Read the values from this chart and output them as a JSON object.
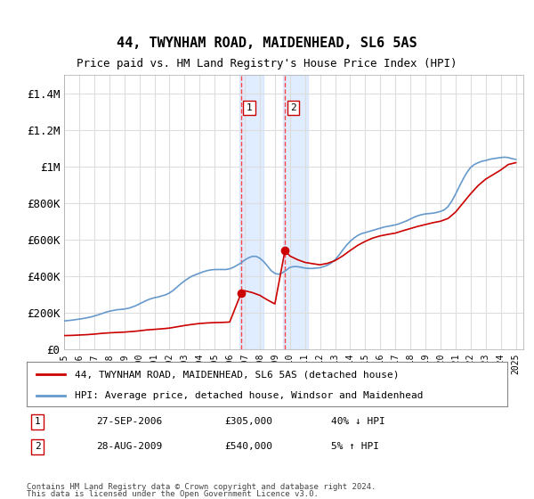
{
  "title": "44, TWYNHAM ROAD, MAIDENHEAD, SL6 5AS",
  "subtitle": "Price paid vs. HM Land Registry's House Price Index (HPI)",
  "ylabel": "",
  "ylim": [
    0,
    1500000
  ],
  "yticks": [
    0,
    200000,
    400000,
    600000,
    800000,
    1000000,
    1200000,
    1400000
  ],
  "ytick_labels": [
    "£0",
    "£200K",
    "£400K",
    "£600K",
    "£800K",
    "£1M",
    "£1.2M",
    "£1.4M"
  ],
  "xlim_start": 1995.0,
  "xlim_end": 2025.5,
  "sale1_x": 2006.75,
  "sale1_y": 305000,
  "sale1_label": "1",
  "sale1_date": "27-SEP-2006",
  "sale1_price": "£305,000",
  "sale1_hpi": "40% ↓ HPI",
  "sale2_x": 2009.67,
  "sale2_y": 540000,
  "sale2_label": "2",
  "sale2_date": "28-AUG-2009",
  "sale2_price": "£540,000",
  "sale2_hpi": "5% ↑ HPI",
  "shade_color": "#cce0ff",
  "shade_alpha": 0.5,
  "line1_color": "#cc0000",
  "line2_color": "#6699cc",
  "marker_color": "#cc0000",
  "grid_color": "#dddddd",
  "bg_color": "#ffffff",
  "legend_label1": "44, TWYNHAM ROAD, MAIDENHEAD, SL6 5AS (detached house)",
  "legend_label2": "HPI: Average price, detached house, Windsor and Maidenhead",
  "footer1": "Contains HM Land Registry data © Crown copyright and database right 2024.",
  "footer2": "This data is licensed under the Open Government Licence v3.0.",
  "hpi_years": [
    1995,
    1995.25,
    1995.5,
    1995.75,
    1996,
    1996.25,
    1996.5,
    1996.75,
    1997,
    1997.25,
    1997.5,
    1997.75,
    1998,
    1998.25,
    1998.5,
    1998.75,
    1999,
    1999.25,
    1999.5,
    1999.75,
    2000,
    2000.25,
    2000.5,
    2000.75,
    2001,
    2001.25,
    2001.5,
    2001.75,
    2002,
    2002.25,
    2002.5,
    2002.75,
    2003,
    2003.25,
    2003.5,
    2003.75,
    2004,
    2004.25,
    2004.5,
    2004.75,
    2005,
    2005.25,
    2005.5,
    2005.75,
    2006,
    2006.25,
    2006.5,
    2006.75,
    2007,
    2007.25,
    2007.5,
    2007.75,
    2008,
    2008.25,
    2008.5,
    2008.75,
    2009,
    2009.25,
    2009.5,
    2009.75,
    2010,
    2010.25,
    2010.5,
    2010.75,
    2011,
    2011.25,
    2011.5,
    2011.75,
    2012,
    2012.25,
    2012.5,
    2012.75,
    2013,
    2013.25,
    2013.5,
    2013.75,
    2014,
    2014.25,
    2014.5,
    2014.75,
    2015,
    2015.25,
    2015.5,
    2015.75,
    2016,
    2016.25,
    2016.5,
    2016.75,
    2017,
    2017.25,
    2017.5,
    2017.75,
    2018,
    2018.25,
    2018.5,
    2018.75,
    2019,
    2019.25,
    2019.5,
    2019.75,
    2020,
    2020.25,
    2020.5,
    2020.75,
    2021,
    2021.25,
    2021.5,
    2021.75,
    2022,
    2022.25,
    2022.5,
    2022.75,
    2023,
    2023.25,
    2023.5,
    2023.75,
    2024,
    2024.25,
    2024.5,
    2024.75,
    2025
  ],
  "hpi_values": [
    155000,
    157000,
    159000,
    162000,
    165000,
    168000,
    172000,
    176000,
    182000,
    188000,
    195000,
    202000,
    208000,
    212000,
    216000,
    218000,
    220000,
    224000,
    230000,
    238000,
    248000,
    258000,
    268000,
    276000,
    282000,
    286000,
    292000,
    298000,
    308000,
    322000,
    340000,
    358000,
    374000,
    388000,
    400000,
    408000,
    416000,
    424000,
    430000,
    434000,
    436000,
    436000,
    436000,
    436000,
    440000,
    448000,
    460000,
    472000,
    488000,
    500000,
    508000,
    508000,
    498000,
    480000,
    456000,
    430000,
    415000,
    410000,
    418000,
    432000,
    448000,
    452000,
    452000,
    448000,
    444000,
    442000,
    442000,
    444000,
    446000,
    452000,
    460000,
    472000,
    490000,
    514000,
    542000,
    568000,
    590000,
    608000,
    622000,
    632000,
    638000,
    644000,
    650000,
    656000,
    662000,
    668000,
    672000,
    676000,
    680000,
    686000,
    694000,
    702000,
    712000,
    722000,
    730000,
    736000,
    740000,
    742000,
    744000,
    748000,
    754000,
    762000,
    780000,
    810000,
    848000,
    890000,
    930000,
    966000,
    994000,
    1010000,
    1020000,
    1028000,
    1032000,
    1038000,
    1042000,
    1045000,
    1048000,
    1050000,
    1048000,
    1042000,
    1038000
  ],
  "red_years": [
    1995,
    1995.5,
    1996,
    1996.5,
    1997,
    1997.5,
    1998,
    1998.5,
    1999,
    1999.5,
    2000,
    2000.5,
    2001,
    2001.5,
    2002,
    2002.5,
    2003,
    2003.5,
    2004,
    2004.5,
    2005,
    2005.5,
    2006,
    2006.75,
    2007,
    2007.5,
    2008,
    2008.5,
    2009,
    2009.67,
    2010,
    2010.5,
    2011,
    2011.5,
    2012,
    2012.5,
    2013,
    2013.5,
    2014,
    2014.5,
    2015,
    2015.5,
    2016,
    2016.5,
    2017,
    2017.5,
    2018,
    2018.5,
    2019,
    2019.5,
    2020,
    2020.5,
    2021,
    2021.5,
    2022,
    2022.5,
    2023,
    2023.5,
    2024,
    2024.5,
    2025
  ],
  "red_values": [
    75000,
    76000,
    78000,
    80000,
    83000,
    87000,
    90000,
    92000,
    94000,
    97000,
    101000,
    106000,
    109000,
    112000,
    116000,
    123000,
    130000,
    136000,
    141000,
    144000,
    146000,
    147000,
    149000,
    305000,
    320000,
    310000,
    295000,
    270000,
    248000,
    540000,
    510000,
    490000,
    475000,
    468000,
    462000,
    470000,
    485000,
    510000,
    540000,
    568000,
    590000,
    608000,
    620000,
    628000,
    635000,
    648000,
    660000,
    672000,
    682000,
    692000,
    700000,
    715000,
    750000,
    800000,
    850000,
    895000,
    930000,
    955000,
    980000,
    1010000,
    1020000
  ]
}
